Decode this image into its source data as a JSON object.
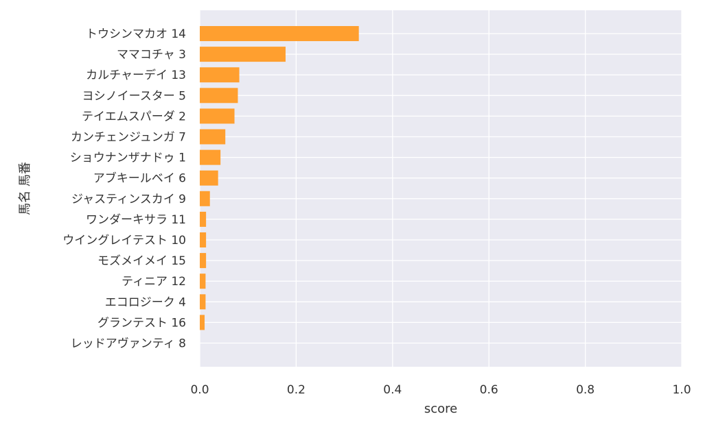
{
  "chart_data": {
    "type": "bar",
    "orientation": "horizontal",
    "categories": [
      "トウシンマカオ 14",
      "ママコチャ 3",
      "カルチャーデイ 13",
      "ヨシノイースター 5",
      "テイエムスパーダ 2",
      "カンチェンジュンガ 7",
      "ショウナンザナドゥ 1",
      "アブキールベイ 6",
      "ジャスティンスカイ 9",
      "ワンダーキサラ 11",
      "ウイングレイテスト 10",
      "モズメイメイ 15",
      "ティニア 12",
      "エコロジーク 4",
      "グランテスト 16",
      "レッドアヴァンティ 8"
    ],
    "values": [
      0.33,
      0.178,
      0.082,
      0.079,
      0.072,
      0.053,
      0.043,
      0.038,
      0.021,
      0.013,
      0.013,
      0.013,
      0.012,
      0.012,
      0.01,
      0.0
    ],
    "xlabel": "score",
    "ylabel": "馬名 馬番",
    "xlim": [
      0,
      1.0
    ],
    "xticks": [
      "0.0",
      "0.2",
      "0.4",
      "0.6",
      "0.8",
      "1.0"
    ],
    "grid": true,
    "bar_color": "#FF9F2F",
    "background_color": "#EAEAF2"
  }
}
